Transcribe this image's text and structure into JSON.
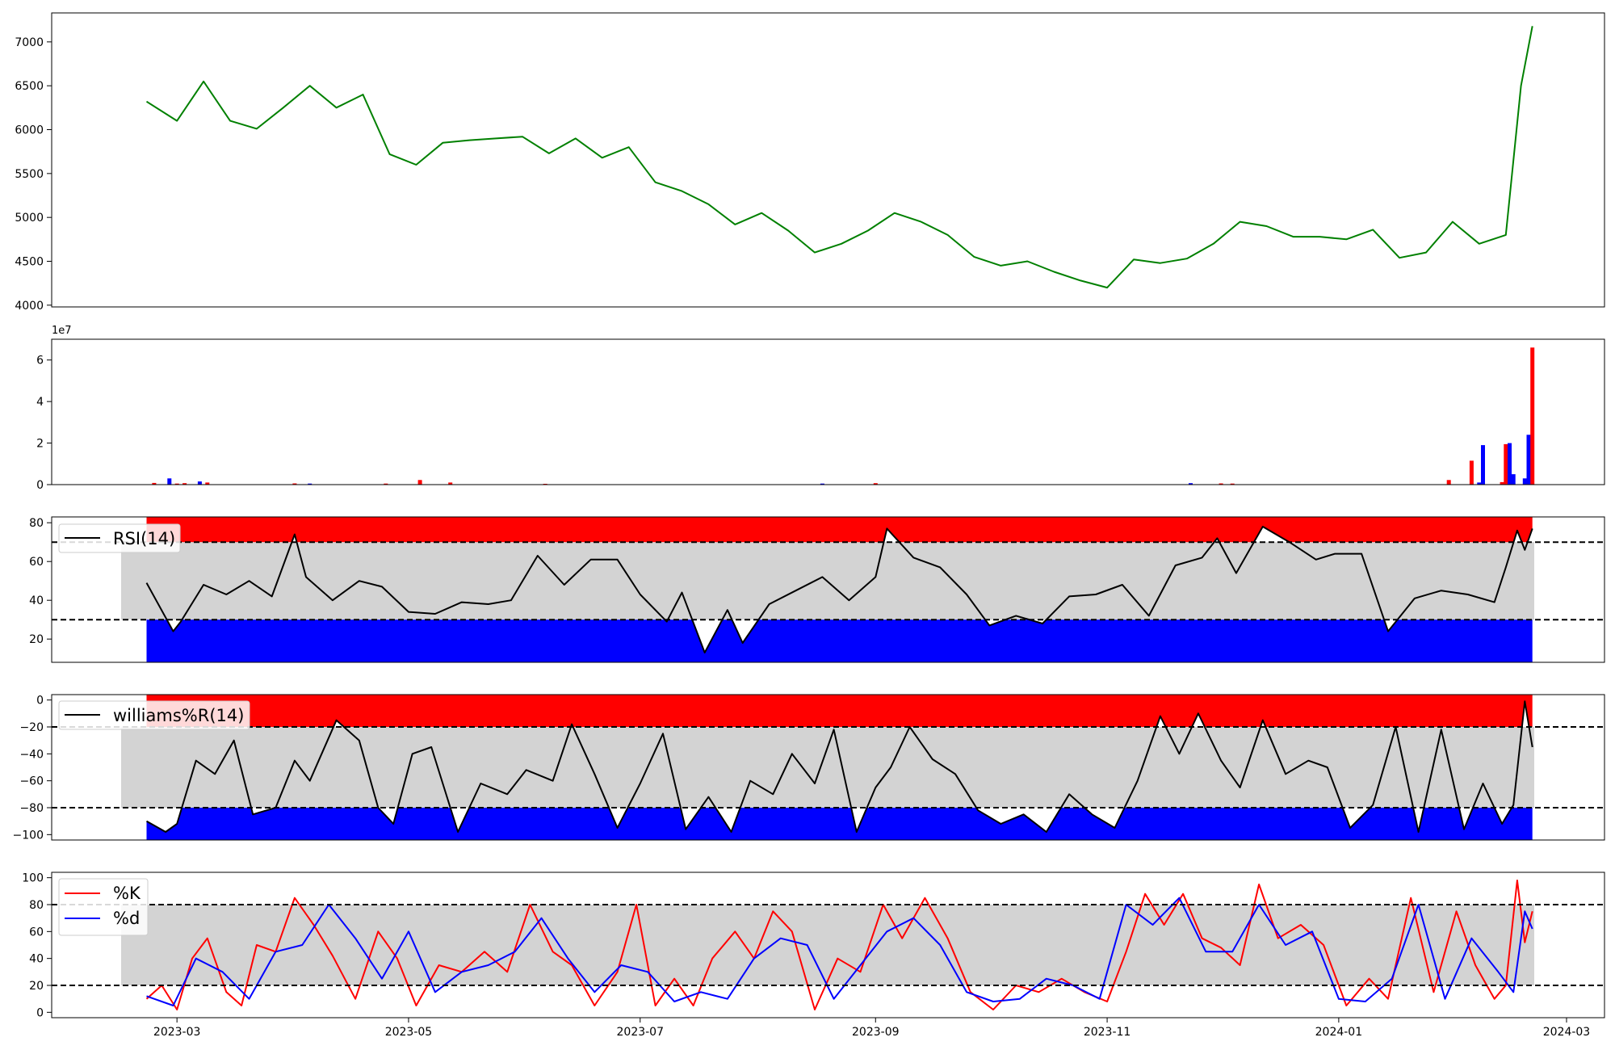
{
  "chart_data": [
    {
      "id": "price",
      "type": "line",
      "color": "#008000",
      "ylim": [
        3980,
        7330
      ],
      "yticks": [
        "4000",
        "4500",
        "5000",
        "5500",
        "6000",
        "6500",
        "7000"
      ],
      "x": [
        "2023-02-21",
        "2023-03-01",
        "2023-03-08",
        "2023-03-15",
        "2023-03-22",
        "2023-03-29",
        "2023-04-05",
        "2023-04-12",
        "2023-04-19",
        "2023-04-26",
        "2023-05-03",
        "2023-05-10",
        "2023-05-17",
        "2023-05-24",
        "2023-05-31",
        "2023-06-07",
        "2023-06-14",
        "2023-06-21",
        "2023-06-28",
        "2023-07-05",
        "2023-07-12",
        "2023-07-19",
        "2023-07-26",
        "2023-08-02",
        "2023-08-09",
        "2023-08-16",
        "2023-08-23",
        "2023-08-30",
        "2023-09-06",
        "2023-09-13",
        "2023-09-20",
        "2023-09-27",
        "2023-10-04",
        "2023-10-11",
        "2023-10-18",
        "2023-10-25",
        "2023-11-01",
        "2023-11-08",
        "2023-11-15",
        "2023-11-22",
        "2023-11-29",
        "2023-12-06",
        "2023-12-13",
        "2023-12-20",
        "2023-12-27",
        "2024-01-03",
        "2024-01-10",
        "2024-01-17",
        "2024-01-24",
        "2024-01-31",
        "2024-02-07",
        "2024-02-14",
        "2024-02-18",
        "2024-02-21"
      ],
      "values": [
        6320,
        6100,
        6550,
        6100,
        6010,
        6250,
        6500,
        6250,
        6400,
        5720,
        5600,
        5850,
        5880,
        5900,
        5920,
        5730,
        5900,
        5680,
        5800,
        5400,
        5300,
        5150,
        4920,
        5050,
        4850,
        4600,
        4700,
        4850,
        5050,
        4950,
        4800,
        4550,
        4450,
        4500,
        4380,
        4280,
        4200,
        4520,
        4480,
        4530,
        4700,
        4950,
        4900,
        4780,
        4780,
        4750,
        4860,
        4540,
        4600,
        4950,
        4700,
        4800,
        6500,
        7180
      ]
    },
    {
      "id": "volume",
      "type": "bar",
      "offset_label": "1e7",
      "ylim": [
        0,
        7
      ],
      "yticks": [
        "0",
        "2",
        "4",
        "6"
      ],
      "up_color": "#ff0000",
      "down_color": "#0000ff",
      "x": [
        "2023-02-23",
        "2023-02-27",
        "2023-03-01",
        "2023-03-03",
        "2023-03-07",
        "2023-03-09",
        "2023-04-01",
        "2023-04-05",
        "2023-04-25",
        "2023-05-04",
        "2023-05-12",
        "2023-06-06",
        "2023-08-18",
        "2023-09-01",
        "2023-11-23",
        "2023-12-01",
        "2023-12-04",
        "2024-01-30",
        "2024-02-05",
        "2024-02-07",
        "2024-02-08",
        "2024-02-13",
        "2024-02-14",
        "2024-02-15",
        "2024-02-16",
        "2024-02-19",
        "2024-02-20",
        "2024-02-21"
      ],
      "values": [
        0.08,
        0.3,
        0.05,
        0.07,
        0.15,
        0.1,
        0.06,
        0.05,
        0.05,
        0.22,
        0.1,
        0.04,
        0.05,
        0.07,
        0.07,
        0.06,
        0.05,
        0.22,
        1.15,
        0.1,
        1.9,
        0.12,
        1.95,
        2.0,
        0.5,
        0.3,
        2.4,
        6.6
      ],
      "directions": [
        "up",
        "down",
        "up",
        "up",
        "down",
        "up",
        "up",
        "down",
        "up",
        "up",
        "up",
        "up",
        "down",
        "up",
        "down",
        "up",
        "up",
        "up",
        "up",
        "down",
        "down",
        "up",
        "up",
        "down",
        "down",
        "down",
        "down",
        "up"
      ]
    },
    {
      "id": "rsi",
      "type": "line",
      "legend": "RSI(14)",
      "color": "#000000",
      "ylim": [
        8,
        83
      ],
      "yticks": [
        "20",
        "40",
        "60",
        "80"
      ],
      "upper": 70,
      "lower": 30,
      "x": [
        "2023-02-21",
        "2023-02-28",
        "2023-03-02",
        "2023-03-08",
        "2023-03-14",
        "2023-03-20",
        "2023-03-26",
        "2023-04-01",
        "2023-04-04",
        "2023-04-11",
        "2023-04-18",
        "2023-04-24",
        "2023-05-01",
        "2023-05-08",
        "2023-05-15",
        "2023-05-22",
        "2023-05-28",
        "2023-06-04",
        "2023-06-11",
        "2023-06-18",
        "2023-06-25",
        "2023-07-01",
        "2023-07-08",
        "2023-07-12",
        "2023-07-18",
        "2023-07-24",
        "2023-07-28",
        "2023-08-04",
        "2023-08-11",
        "2023-08-18",
        "2023-08-25",
        "2023-09-01",
        "2023-09-04",
        "2023-09-11",
        "2023-09-18",
        "2023-09-25",
        "2023-10-01",
        "2023-10-08",
        "2023-10-15",
        "2023-10-22",
        "2023-10-29",
        "2023-11-05",
        "2023-11-12",
        "2023-11-19",
        "2023-11-26",
        "2023-11-30",
        "2023-12-05",
        "2023-12-12",
        "2023-12-19",
        "2023-12-26",
        "2023-12-31",
        "2024-01-07",
        "2024-01-14",
        "2024-01-21",
        "2024-01-28",
        "2024-02-04",
        "2024-02-11",
        "2024-02-14",
        "2024-02-17",
        "2024-02-19",
        "2024-02-21"
      ],
      "values": [
        49,
        24,
        29,
        48,
        43,
        50,
        42,
        74,
        52,
        40,
        50,
        47,
        34,
        33,
        39,
        38,
        40,
        63,
        48,
        61,
        61,
        43,
        29,
        44,
        13,
        35,
        18,
        38,
        45,
        52,
        40,
        52,
        77,
        62,
        57,
        43,
        27,
        32,
        28,
        42,
        43,
        48,
        32,
        58,
        62,
        72,
        54,
        78,
        70,
        61,
        64,
        64,
        24,
        41,
        45,
        43,
        39,
        57,
        76,
        66,
        77
      ]
    },
    {
      "id": "williams",
      "type": "line",
      "legend": "williams%R(14)",
      "color": "#000000",
      "ylim": [
        -104,
        4
      ],
      "yticks": [
        "0",
        "−20",
        "−40",
        "−60",
        "−80",
        "−100"
      ],
      "upper": -20,
      "lower": -80,
      "x": [
        "2023-02-21",
        "2023-02-26",
        "2023-03-01",
        "2023-03-06",
        "2023-03-11",
        "2023-03-16",
        "2023-03-21",
        "2023-03-27",
        "2023-04-01",
        "2023-04-05",
        "2023-04-12",
        "2023-04-18",
        "2023-04-23",
        "2023-04-27",
        "2023-05-02",
        "2023-05-07",
        "2023-05-14",
        "2023-05-20",
        "2023-05-27",
        "2023-06-01",
        "2023-06-08",
        "2023-06-13",
        "2023-06-19",
        "2023-06-25",
        "2023-07-01",
        "2023-07-07",
        "2023-07-13",
        "2023-07-19",
        "2023-07-25",
        "2023-07-30",
        "2023-08-05",
        "2023-08-10",
        "2023-08-16",
        "2023-08-21",
        "2023-08-27",
        "2023-09-01",
        "2023-09-05",
        "2023-09-10",
        "2023-09-16",
        "2023-09-22",
        "2023-09-28",
        "2023-10-04",
        "2023-10-10",
        "2023-10-16",
        "2023-10-22",
        "2023-10-28",
        "2023-11-03",
        "2023-11-09",
        "2023-11-15",
        "2023-11-20",
        "2023-11-25",
        "2023-12-01",
        "2023-12-06",
        "2023-12-12",
        "2023-12-18",
        "2023-12-24",
        "2023-12-29",
        "2024-01-04",
        "2024-01-10",
        "2024-01-16",
        "2024-01-22",
        "2024-01-28",
        "2024-02-03",
        "2024-02-08",
        "2024-02-13",
        "2024-02-16",
        "2024-02-19",
        "2024-02-21"
      ],
      "values": [
        -90,
        -98,
        -92,
        -45,
        -55,
        -30,
        -85,
        -80,
        -45,
        -60,
        -15,
        -30,
        -80,
        -92,
        -40,
        -35,
        -98,
        -62,
        -70,
        -52,
        -60,
        -18,
        -55,
        -95,
        -62,
        -25,
        -96,
        -72,
        -98,
        -60,
        -70,
        -40,
        -62,
        -22,
        -98,
        -65,
        -50,
        -20,
        -44,
        -55,
        -82,
        -92,
        -85,
        -98,
        -70,
        -85,
        -95,
        -60,
        -12,
        -40,
        -10,
        -45,
        -65,
        -15,
        -55,
        -45,
        -50,
        -95,
        -78,
        -20,
        -98,
        -22,
        -96,
        -62,
        -92,
        -78,
        -1,
        -35
      ]
    },
    {
      "id": "stochastic",
      "type": "line",
      "ylim": [
        -4,
        104
      ],
      "yticks": [
        "0",
        "20",
        "40",
        "60",
        "80",
        "100"
      ],
      "upper": 80,
      "lower": 20,
      "series": [
        {
          "name": "%K",
          "color": "#ff0000",
          "x": [
            "2023-02-21",
            "2023-02-25",
            "2023-03-01",
            "2023-03-05",
            "2023-03-09",
            "2023-03-14",
            "2023-03-18",
            "2023-03-22",
            "2023-03-27",
            "2023-04-01",
            "2023-04-06",
            "2023-04-11",
            "2023-04-17",
            "2023-04-23",
            "2023-04-28",
            "2023-05-03",
            "2023-05-09",
            "2023-05-15",
            "2023-05-21",
            "2023-05-27",
            "2023-06-02",
            "2023-06-08",
            "2023-06-13",
            "2023-06-19",
            "2023-06-25",
            "2023-06-30",
            "2023-07-05",
            "2023-07-10",
            "2023-07-15",
            "2023-07-20",
            "2023-07-26",
            "2023-07-31",
            "2023-08-05",
            "2023-08-10",
            "2023-08-16",
            "2023-08-22",
            "2023-08-28",
            "2023-09-03",
            "2023-09-08",
            "2023-09-14",
            "2023-09-20",
            "2023-09-26",
            "2023-10-02",
            "2023-10-08",
            "2023-10-14",
            "2023-10-20",
            "2023-10-26",
            "2023-11-01",
            "2023-11-06",
            "2023-11-11",
            "2023-11-16",
            "2023-11-21",
            "2023-11-26",
            "2023-12-01",
            "2023-12-06",
            "2023-12-11",
            "2023-12-16",
            "2023-12-22",
            "2023-12-28",
            "2024-01-03",
            "2024-01-09",
            "2024-01-14",
            "2024-01-20",
            "2024-01-26",
            "2024-02-01",
            "2024-02-06",
            "2024-02-11",
            "2024-02-14",
            "2024-02-17",
            "2024-02-19",
            "2024-02-21"
          ],
          "values": [
            10,
            20,
            2,
            40,
            55,
            15,
            5,
            50,
            45,
            85,
            65,
            42,
            10,
            60,
            40,
            5,
            35,
            30,
            45,
            30,
            80,
            45,
            35,
            5,
            30,
            80,
            5,
            25,
            5,
            40,
            60,
            40,
            75,
            60,
            2,
            40,
            30,
            80,
            55,
            85,
            55,
            15,
            2,
            20,
            15,
            25,
            15,
            8,
            45,
            88,
            65,
            88,
            55,
            48,
            35,
            95,
            55,
            65,
            50,
            5,
            25,
            10,
            85,
            15,
            75,
            35,
            10,
            20,
            98,
            52,
            75
          ]
        },
        {
          "name": "%d",
          "color": "#0000ff",
          "x": [
            "2023-02-21",
            "2023-02-28",
            "2023-03-06",
            "2023-03-13",
            "2023-03-20",
            "2023-03-27",
            "2023-04-03",
            "2023-04-10",
            "2023-04-17",
            "2023-04-24",
            "2023-05-01",
            "2023-05-08",
            "2023-05-15",
            "2023-05-22",
            "2023-05-29",
            "2023-06-05",
            "2023-06-12",
            "2023-06-19",
            "2023-06-26",
            "2023-07-03",
            "2023-07-10",
            "2023-07-17",
            "2023-07-24",
            "2023-07-31",
            "2023-08-07",
            "2023-08-14",
            "2023-08-21",
            "2023-08-28",
            "2023-09-04",
            "2023-09-11",
            "2023-09-18",
            "2023-09-25",
            "2023-10-02",
            "2023-10-09",
            "2023-10-16",
            "2023-10-23",
            "2023-10-30",
            "2023-11-06",
            "2023-11-13",
            "2023-11-20",
            "2023-11-27",
            "2023-12-04",
            "2023-12-11",
            "2023-12-18",
            "2023-12-25",
            "2024-01-01",
            "2024-01-08",
            "2024-01-15",
            "2024-01-22",
            "2024-01-29",
            "2024-02-05",
            "2024-02-12",
            "2024-02-16",
            "2024-02-19",
            "2024-02-21"
          ],
          "values": [
            12,
            5,
            40,
            30,
            10,
            45,
            50,
            80,
            55,
            25,
            60,
            15,
            30,
            35,
            45,
            70,
            40,
            15,
            35,
            30,
            8,
            15,
            10,
            40,
            55,
            50,
            10,
            35,
            60,
            70,
            50,
            15,
            8,
            10,
            25,
            20,
            10,
            80,
            65,
            85,
            45,
            45,
            80,
            50,
            60,
            10,
            8,
            25,
            80,
            10,
            55,
            30,
            15,
            75,
            62
          ]
        }
      ]
    }
  ],
  "x_ticks": [
    "2023-03",
    "2023-05",
    "2023-07",
    "2023-09",
    "2023-11",
    "2024-01",
    "2024-03"
  ]
}
